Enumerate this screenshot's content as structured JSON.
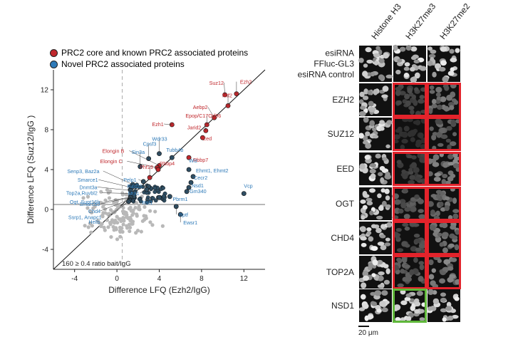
{
  "legend": [
    {
      "label": "PRC2 core and known PRC2 associated proteins",
      "color": "#c0282d"
    },
    {
      "label": "Novel PRC2 associated proteins",
      "color": "#2e7ab8"
    }
  ],
  "chart_data": {
    "type": "scatter",
    "xlabel": "Difference LFQ (Ezh2/IgG)",
    "ylabel": "Difference LFQ (Suz12/IgG )",
    "xlim": [
      -6,
      14
    ],
    "ylim": [
      -6,
      14
    ],
    "xticks": [
      "-4",
      "0",
      "4",
      "8",
      "12"
    ],
    "yticks": [
      "-4",
      "0",
      "4",
      "8",
      "12"
    ],
    "xtick_values": [
      -4,
      0,
      4,
      8,
      12
    ],
    "ytick_values": [
      -4,
      0,
      4,
      8,
      12
    ],
    "threshold_x": 0.5,
    "threshold_y": 0.5,
    "diagonal": true,
    "annotation": "160 ≥ 0.4 ratio bait/IgG",
    "colors": {
      "known": "#c0282d",
      "novel": "#2e7ab8",
      "background": "#b8b8b8",
      "near": "#9aa3ab"
    },
    "known": [
      {
        "label": "Suz12",
        "x": 10.2,
        "y": 11.5
      },
      {
        "label": "Ezh2",
        "x": 11.3,
        "y": 11.6
      },
      {
        "label": "Mtf2",
        "x": 10.5,
        "y": 10.4
      },
      {
        "label": "Aebp2",
        "x": 9.2,
        "y": 9.2
      },
      {
        "label": "Ezh1",
        "x": 5.2,
        "y": 8.5
      },
      {
        "label": "Epop/C17Orf96",
        "x": 8.5,
        "y": 8.5
      },
      {
        "label": "Jarid2",
        "x": 8.4,
        "y": 7.9
      },
      {
        "label": "Eed",
        "x": 8.1,
        "y": 7.2
      },
      {
        "label": "Elongin B",
        "x": 4.0,
        "y": 4.4
      },
      {
        "label": "Elongin C",
        "x": 3.8,
        "y": 4.2
      },
      {
        "label": "Rbbp7",
        "x": 6.8,
        "y": 5.2
      },
      {
        "label": "Rbbp4",
        "x": 3.9,
        "y": 4.0
      },
      {
        "label": "Phf19",
        "x": 3.1,
        "y": 3.2
      }
    ],
    "novel": [
      {
        "label": "Sin3a",
        "x": 2.2,
        "y": 4.3
      },
      {
        "label": "Cpsf3",
        "x": 3.0,
        "y": 5.1
      },
      {
        "label": "Wdr33",
        "x": 4.0,
        "y": 5.6
      },
      {
        "label": "Tubb4b",
        "x": 5.2,
        "y": 5.2
      },
      {
        "label": "Senp3, Baz2a",
        "x": 1.5,
        "y": 2.5
      },
      {
        "label": "Smarce1",
        "x": 1.4,
        "y": 2.2
      },
      {
        "label": "Dnmt3a",
        "x": 1.3,
        "y": 1.9
      },
      {
        "label": "Top2a,Ruvbl2",
        "x": 1.4,
        "y": 1.6
      },
      {
        "label": "Ogt, Supt16h",
        "x": 1.6,
        "y": 1.3
      },
      {
        "label": "Smarca5",
        "x": 1.3,
        "y": 1.2
      },
      {
        "label": "Chd4",
        "x": 1.2,
        "y": 1.0
      },
      {
        "label": "Ssrp1, Anapc1",
        "x": 1.2,
        "y": 0.9
      },
      {
        "label": "Hells",
        "x": 1.1,
        "y": 0.8
      },
      {
        "label": "Pelp1",
        "x": 2.5,
        "y": 2.8
      },
      {
        "label": "Rad21",
        "x": 3.0,
        "y": 2.3
      },
      {
        "label": "Mta1",
        "x": 2.8,
        "y": 2.0
      },
      {
        "label": "Wiz",
        "x": 6.8,
        "y": 4.0
      },
      {
        "label": "Ehmt1, Ehmt2",
        "x": 7.2,
        "y": 3.3
      },
      {
        "label": "Cecr2",
        "x": 7.0,
        "y": 2.7
      },
      {
        "label": "Nsd1",
        "x": 6.8,
        "y": 2.2
      },
      {
        "label": "Gm340",
        "x": 6.6,
        "y": 1.8
      },
      {
        "label": "Pbrm1",
        "x": 5.0,
        "y": 1.3
      },
      {
        "label": "Rsf1",
        "x": 4.0,
        "y": 1.2
      },
      {
        "label": "Bptf",
        "x": 5.6,
        "y": 0.3
      },
      {
        "label": "Vcp",
        "x": 12.0,
        "y": 1.6
      },
      {
        "label": "Ewsr1",
        "x": 6.0,
        "y": -0.5
      }
    ]
  },
  "microscopy": {
    "columns": [
      "Histone H3",
      "H3K27me3",
      "H3K27me2"
    ],
    "rows": [
      [
        "esiRNA",
        "FFluc-GL3",
        "esiRNA control"
      ],
      [
        "EZH2"
      ],
      [
        "SUZ12"
      ],
      [
        "EED"
      ],
      [
        "OGT"
      ],
      [
        "CHD4"
      ],
      [
        "TOP2A"
      ],
      [
        "NSD1"
      ]
    ],
    "scale_bar": "20 μm",
    "box_colors": {
      "reduced": "#e3232b",
      "increased": "#5fb83a"
    },
    "signal": [
      [
        1.0,
        1.0,
        1.0
      ],
      [
        1.0,
        0.18,
        0.45
      ],
      [
        1.0,
        0.05,
        0.35
      ],
      [
        1.0,
        0.15,
        0.5
      ],
      [
        1.0,
        0.3,
        0.45
      ],
      [
        1.0,
        0.25,
        0.45
      ],
      [
        1.0,
        0.3,
        0.5
      ],
      [
        1.0,
        1.25,
        1.0
      ]
    ]
  }
}
